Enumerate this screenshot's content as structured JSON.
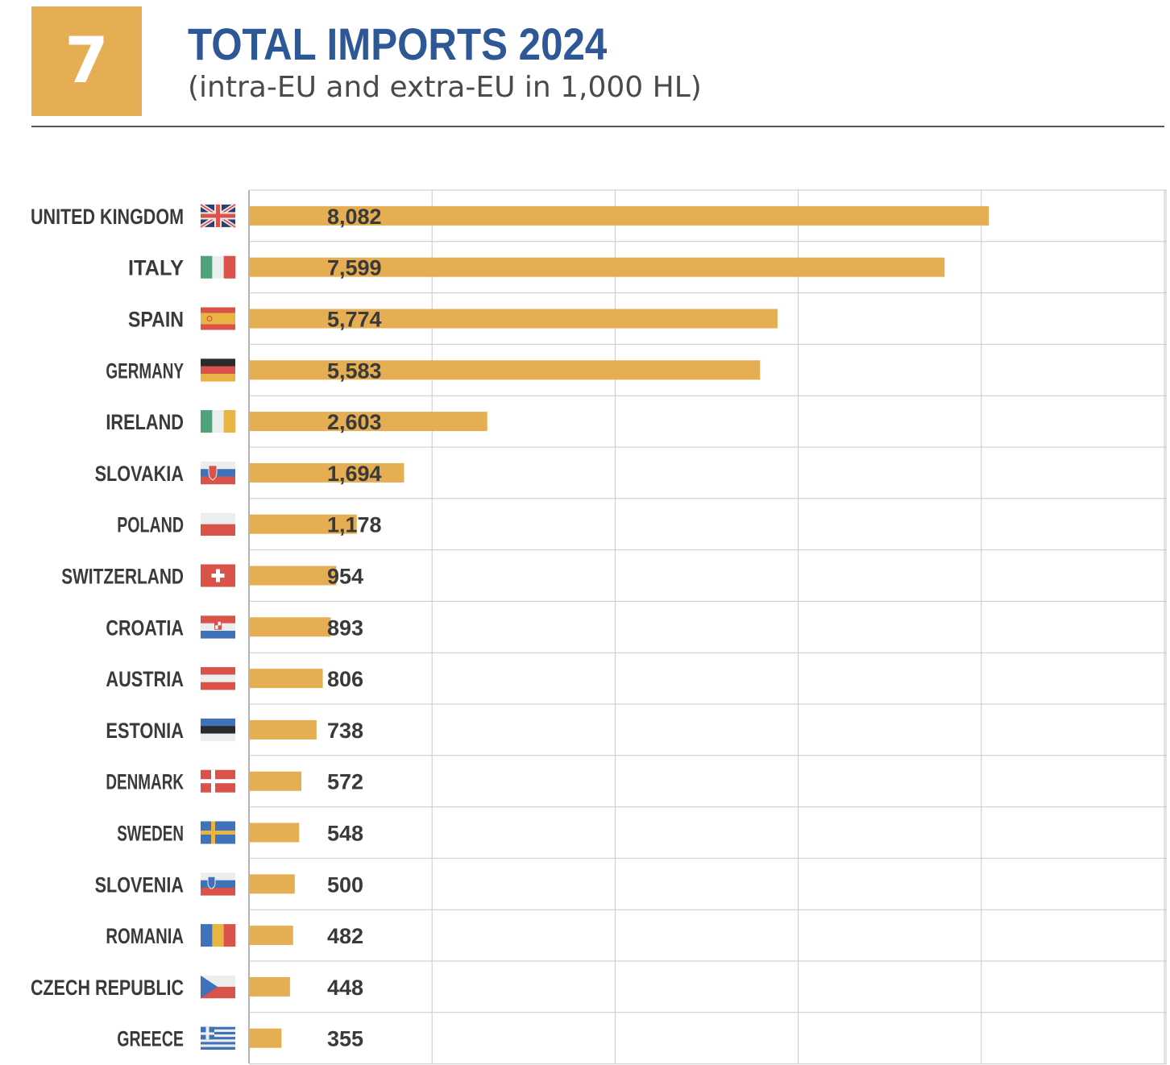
{
  "badge": {
    "number": "7"
  },
  "header": {
    "title": "TOTAL IMPORTS 2024",
    "subtitle": "(intra-EU and extra-EU in 1,000 HL)"
  },
  "colors": {
    "bar": "#E5AE52",
    "title": "#2D5795",
    "grid": "#c9c9c9",
    "text": "#3a3a3a"
  },
  "chart_data": {
    "type": "bar",
    "orientation": "horizontal",
    "title": "TOTAL IMPORTS 2024",
    "subtitle": "(intra-EU and extra-EU in 1,000 HL)",
    "xlim": [
      0,
      10000
    ],
    "grid": true,
    "categories": [
      "UNITED KINGDOM",
      "ITALY",
      "SPAIN",
      "GERMANY",
      "IRELAND",
      "SLOVAKIA",
      "POLAND",
      "SWITZERLAND",
      "CROATIA",
      "AUSTRIA",
      "ESTONIA",
      "DENMARK",
      "SWEDEN",
      "SLOVENIA",
      "ROMANIA",
      "CZECH REPUBLIC",
      "GREECE"
    ],
    "values": [
      8082,
      7599,
      5774,
      5583,
      2603,
      1694,
      1178,
      954,
      893,
      806,
      738,
      572,
      548,
      500,
      482,
      448,
      355
    ],
    "value_labels": [
      "8,082",
      "7,599",
      "5,774",
      "5,583",
      "2,603",
      "1,694",
      "1,178",
      "954",
      "893",
      "806",
      "738",
      "572",
      "548",
      "500",
      "482",
      "448",
      "355"
    ],
    "flags": [
      "uk-flag-icon",
      "italy-flag-icon",
      "spain-flag-icon",
      "germany-flag-icon",
      "ireland-flag-icon",
      "slovakia-flag-icon",
      "poland-flag-icon",
      "switzerland-flag-icon",
      "croatia-flag-icon",
      "austria-flag-icon",
      "estonia-flag-icon",
      "denmark-flag-icon",
      "sweden-flag-icon",
      "slovenia-flag-icon",
      "romania-flag-icon",
      "czech-republic-flag-icon",
      "greece-flag-icon"
    ]
  }
}
